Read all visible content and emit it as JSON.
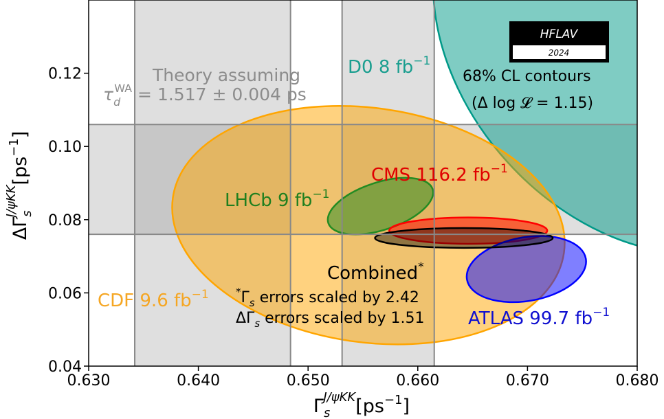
{
  "chart_data": {
    "type": "contour",
    "xlabel": "Γ",
    "xlabel_sub": "s",
    "xlabel_sup": "J/ψKK",
    "xlabel_unit": "[ps",
    "xlabel_unit_sup": "−1",
    "xlabel_unit_end": "]",
    "ylabel": "ΔΓ",
    "ylabel_sub": "s",
    "ylabel_sup": "J/ψKK",
    "ylabel_unit": "[ps",
    "ylabel_unit_sup": "−1",
    "ylabel_unit_end": "]",
    "xlim": [
      0.63,
      0.68
    ],
    "ylim": [
      0.04,
      0.14
    ],
    "x_ticks": [
      {
        "value": 0.63,
        "label": "0.630"
      },
      {
        "value": 0.64,
        "label": "0.640"
      },
      {
        "value": 0.65,
        "label": "0.650"
      },
      {
        "value": 0.66,
        "label": "0.660"
      },
      {
        "value": 0.67,
        "label": "0.670"
      },
      {
        "value": 0.68,
        "label": "0.680"
      }
    ],
    "y_ticks": [
      {
        "value": 0.04,
        "label": "0.04"
      },
      {
        "value": 0.06,
        "label": "0.06"
      },
      {
        "value": 0.08,
        "label": "0.08"
      },
      {
        "value": 0.1,
        "label": "0.10"
      },
      {
        "value": 0.12,
        "label": "0.12"
      }
    ],
    "theory_bands": {
      "vertical": {
        "inner": [
          0.6531,
          0.6615
        ],
        "outer": [
          0.6342,
          0.6484
        ]
      },
      "horizontal": [
        0.076,
        0.106
      ]
    },
    "ellipses": [
      {
        "name": "CDF 9.6 fb",
        "sup": "−1",
        "color": "#ffa500",
        "cx": 0.6555,
        "cy": 0.0785,
        "rx": 0.018,
        "ry": 0.032,
        "angle_deg": 8,
        "opacity": 0.5
      },
      {
        "name": "D0 8 fb",
        "sup": "−1",
        "color": "#009988",
        "cx": 0.68,
        "cy": 0.128,
        "rx": 0.016,
        "ry": 0.064,
        "angle_deg": -42,
        "opacity": 0.5
      },
      {
        "name": "LHCb 9 fb",
        "sup": "−1",
        "color": "#228b22",
        "cx": 0.6566,
        "cy": 0.0837,
        "rx": 0.005,
        "ry": 0.0065,
        "angle_deg": -18,
        "opacity": 0.5
      },
      {
        "name": "CMS 116.2 fb",
        "sup": "−1",
        "color": "#ff0000",
        "cx": 0.6646,
        "cy": 0.077,
        "rx": 0.0072,
        "ry": 0.0036,
        "angle_deg": 0,
        "opacity": 0.5
      },
      {
        "name": "ATLAS 99.7 fb",
        "sup": "−1",
        "color": "#0000ff",
        "cx": 0.6699,
        "cy": 0.0665,
        "rx": 0.0055,
        "ry": 0.0087,
        "angle_deg": -10,
        "opacity": 0.5
      },
      {
        "name": "Combined",
        "sup": "*",
        "color": "#000000",
        "cx": 0.6642,
        "cy": 0.075,
        "rx": 0.0081,
        "ry": 0.0027,
        "angle_deg": 0,
        "opacity": 0.4
      }
    ],
    "annotations": {
      "theory_line1": "Theory assuming",
      "theory_tau": "τ",
      "theory_tau_sub": "d",
      "theory_tau_sup": "WA",
      "theory_value": " = 1.517 ± 0.004 ps",
      "cl_line1": "68% CL contours",
      "cl_line2": "(Δ log 𝓛 = 1.15)",
      "note_line1_star": "*",
      "note_line1_sym": "Γ",
      "note_line1_sub": "s",
      "note_line1_rest": " errors scaled by 2.42",
      "note_line2_sym": "ΔΓ",
      "note_line2_sub": "s",
      "note_line2_rest": " errors scaled by 1.51"
    },
    "logo": {
      "title": "HFLAV",
      "year": "2024"
    }
  }
}
